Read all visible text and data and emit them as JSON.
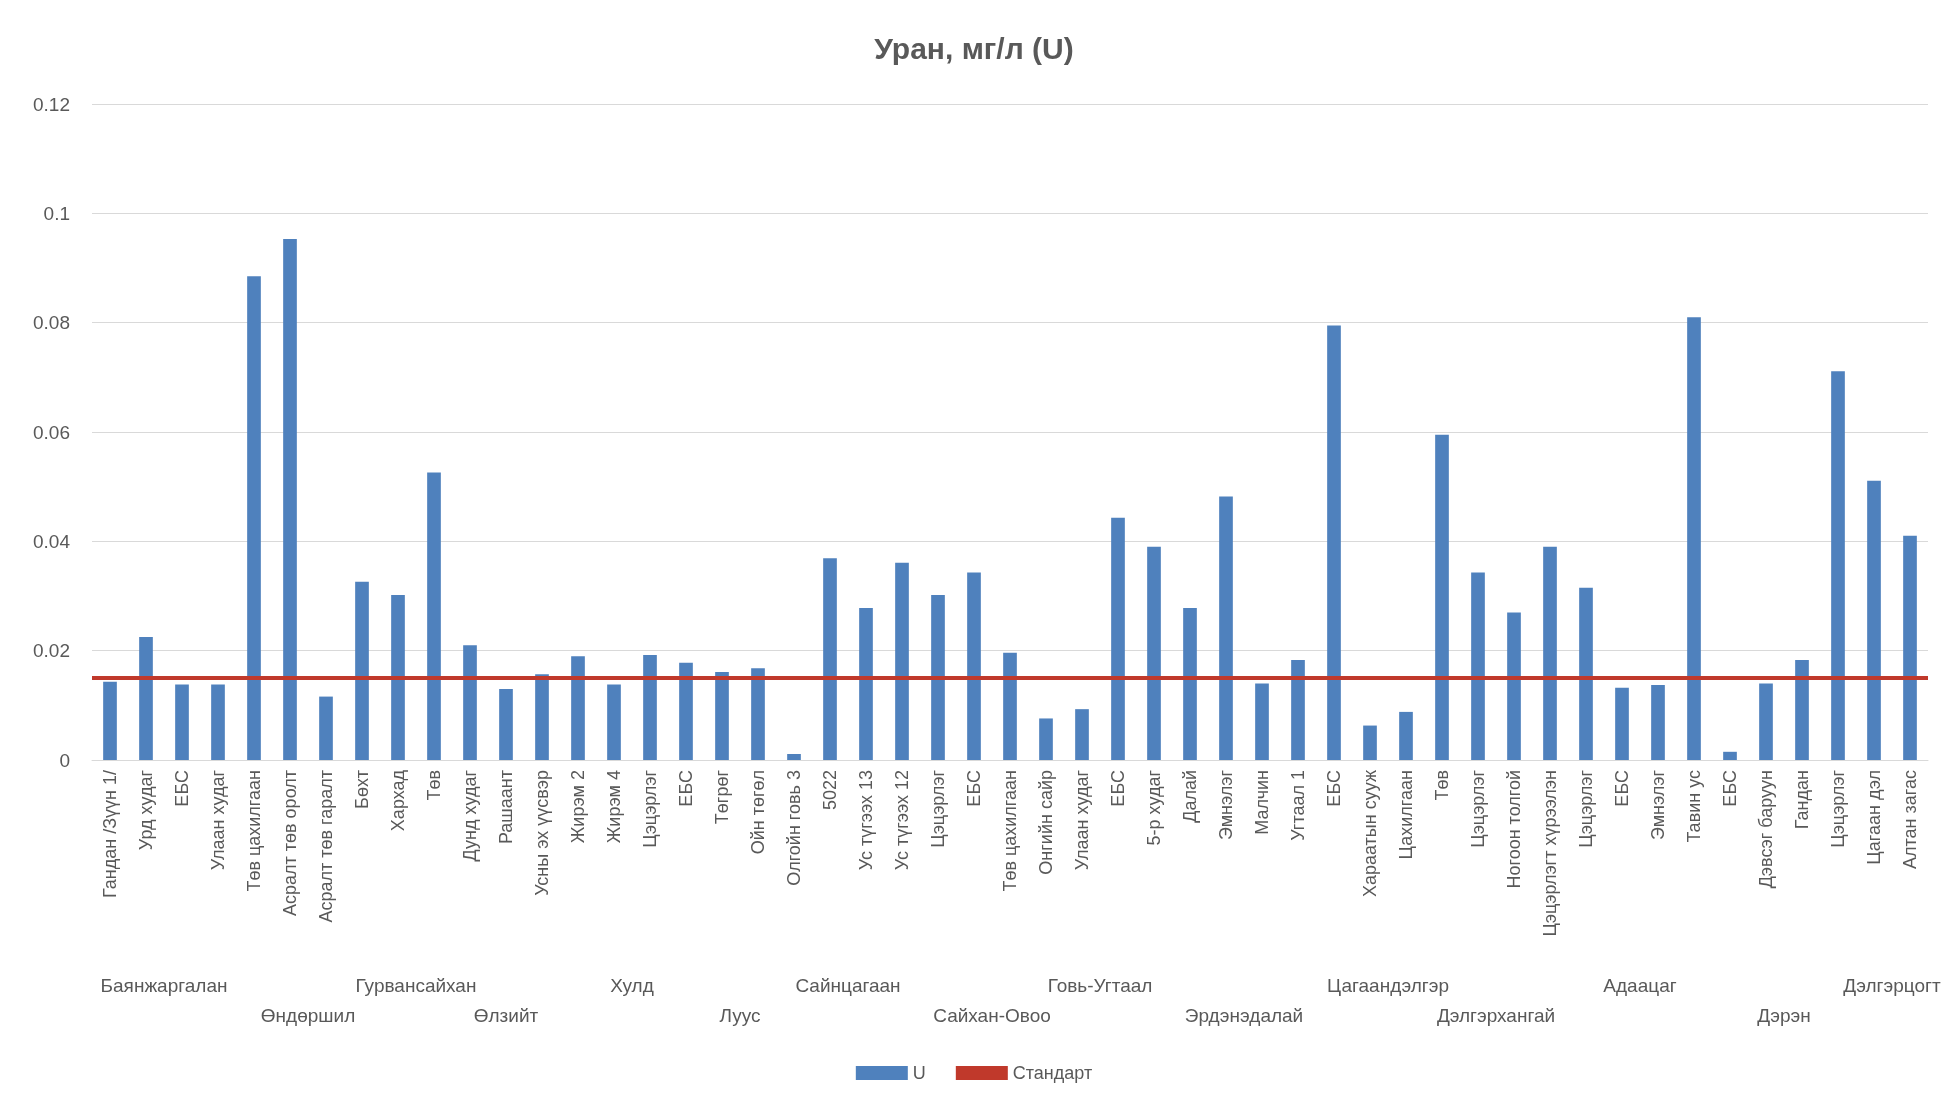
{
  "chart_data": {
    "type": "bar",
    "title": "Уран, мг/л (U)",
    "categories": [
      "Гандан /Зүүн 1/",
      "Урд худаг",
      "ЕБС",
      "Улаан худаг",
      "Төв цахилгаан",
      "Асралт төв оролт",
      "Асралт төв гаралт",
      "Бөхт",
      "Хархад",
      "Төв",
      "Дунд худаг",
      "Рашаант",
      "Усны эх үүсвэр",
      "Жирэм 2",
      "Жирэм 4",
      "Цэцэрлэг",
      "ЕБС",
      "Төгрөг",
      "Ойн төгөл",
      "Олгойн говь 3",
      "5022",
      "Ус түгээх 13",
      "Ус түгээх 12",
      "Цэцэрлэг",
      "ЕБС",
      "Төв цахилгаан",
      "Онгийн сайр",
      "Улаан худаг",
      "ЕБС",
      "5-р худаг",
      "Далай",
      "Эмнэлэг",
      "Малчин",
      "Угтаал 1",
      "ЕБС",
      "Хараатын сууж",
      "Цахилгаан",
      "Төв",
      "Цэцэрлэг",
      "Ногоон толгой",
      "Цэцэрлэгт хүрээлэн",
      "Цэцэрлэг",
      "ЕБС",
      "Эмнэлэг",
      "Тавин ус",
      "ЕБС",
      "Дэвсэг баруун",
      "Гандан",
      "Цэцэрлэг",
      "Цагаан дэл",
      "Алтан загас"
    ],
    "series": [
      {
        "name": "U",
        "color": "#4f81bd",
        "values": [
          0.0143,
          0.0225,
          0.0138,
          0.0138,
          0.0885,
          0.0953,
          0.0116,
          0.0326,
          0.0302,
          0.0526,
          0.021,
          0.013,
          0.0157,
          0.019,
          0.0138,
          0.0192,
          0.0178,
          0.0161,
          0.0168,
          0.0011,
          0.0369,
          0.0278,
          0.0361,
          0.0302,
          0.0343,
          0.0196,
          0.0076,
          0.0093,
          0.0443,
          0.039,
          0.0278,
          0.0482,
          0.014,
          0.0183,
          0.0795,
          0.0063,
          0.0088,
          0.0595,
          0.0343,
          0.027,
          0.039,
          0.0315,
          0.0132,
          0.0137,
          0.081,
          0.0015,
          0.014,
          0.0183,
          0.0711,
          0.0511,
          0.041
        ]
      }
    ],
    "ref_lines": [
      {
        "axis": "y",
        "value": 0.015,
        "label": "Стандарт",
        "color": "#c0392b"
      }
    ],
    "annotations": [
      "Баянжаргалан",
      "Өндөршил",
      "Гурвансайхан",
      "Өлзийт",
      "Хулд",
      "Луус",
      "Сайнцагаан",
      "Сайхан-Овоо",
      "Говь-Угтаал",
      "Эрдэнэдалай",
      "Цагаандэлгэр",
      "Дэлгэрхангай",
      "Адаацаг",
      "Дэрэн",
      "Дэлгэрцогт"
    ],
    "ylim": [
      0,
      0.12
    ],
    "yticks": [
      0,
      0.02,
      0.04,
      0.06,
      0.08,
      0.1,
      0.12
    ],
    "grid": "y",
    "legend": "bottom"
  }
}
